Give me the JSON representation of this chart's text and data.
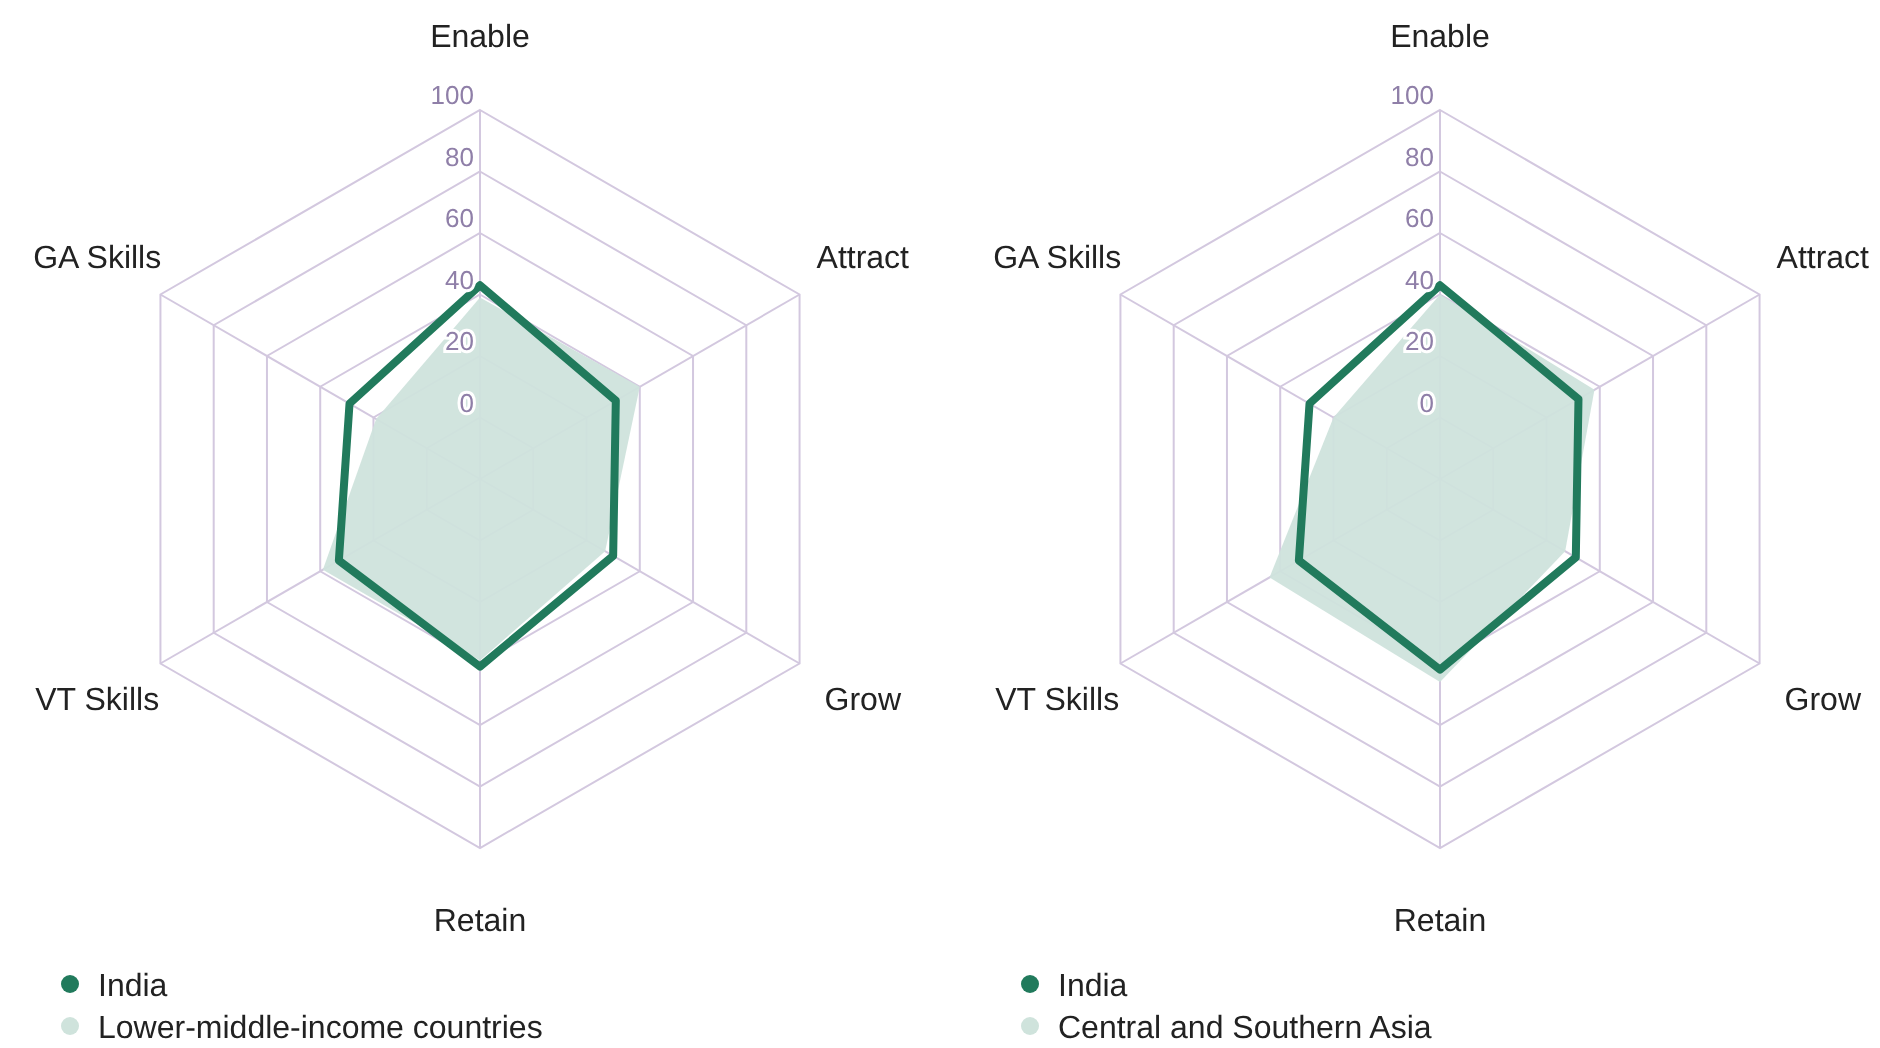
{
  "chart_data": [
    {
      "type": "radar",
      "categories": [
        "Enable",
        "Attract",
        "Grow",
        "Retain",
        "VT Skills",
        "GA Skills"
      ],
      "ylim": [
        -20,
        100
      ],
      "yticks": [
        0,
        20,
        40,
        60,
        80,
        100
      ],
      "grid": true,
      "legend": "bottom left",
      "series": [
        {
          "name": "India",
          "color": "#217a5c",
          "values": [
            43,
            31,
            30,
            41,
            33,
            29
          ]
        },
        {
          "name": "Lower-middle-income countries",
          "type": "area",
          "color": "#cfe3dc",
          "values": [
            39,
            40,
            27,
            39,
            39,
            19
          ]
        }
      ]
    },
    {
      "type": "radar",
      "categories": [
        "Enable",
        "Attract",
        "Grow",
        "Retain",
        "VT Skills",
        "GA Skills"
      ],
      "ylim": [
        -20,
        100
      ],
      "yticks": [
        0,
        20,
        40,
        60,
        80,
        100
      ],
      "grid": true,
      "legend": "bottom left",
      "series": [
        {
          "name": "India",
          "color": "#217a5c",
          "values": [
            43,
            32,
            31,
            42,
            33,
            29
          ]
        },
        {
          "name": "Central and Southern Asia",
          "type": "area",
          "color": "#cfe3dc",
          "values": [
            40,
            38,
            27,
            46,
            44,
            20
          ]
        }
      ]
    }
  ]
}
